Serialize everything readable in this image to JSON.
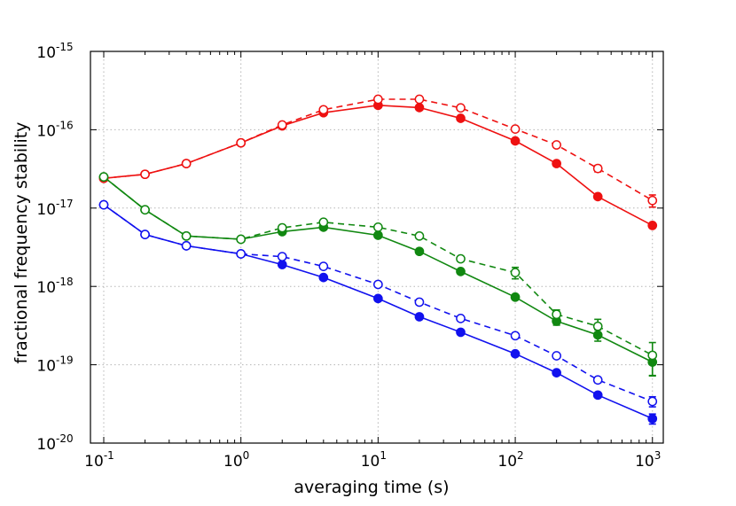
{
  "chart_data": {
    "type": "line",
    "title": "",
    "xlabel": "averaging time (s)",
    "ylabel": "fractional frequency stability",
    "xscale": "log",
    "yscale": "log",
    "xlim": [
      0.08,
      1200
    ],
    "ylim": [
      1e-20,
      1e-15
    ],
    "grid": true,
    "x_ticks": [
      {
        "value": 0.1,
        "base": "10",
        "exp": "-1"
      },
      {
        "value": 1,
        "base": "10",
        "exp": "0"
      },
      {
        "value": 10,
        "base": "10",
        "exp": "1"
      },
      {
        "value": 100,
        "base": "10",
        "exp": "2"
      },
      {
        "value": 1000,
        "base": "10",
        "exp": "3"
      }
    ],
    "y_ticks": [
      {
        "value": 1e-20,
        "base": "10",
        "exp": "-20"
      },
      {
        "value": 1e-19,
        "base": "10",
        "exp": "-19"
      },
      {
        "value": 1e-18,
        "base": "10",
        "exp": "-18"
      },
      {
        "value": 1e-17,
        "base": "10",
        "exp": "-17"
      },
      {
        "value": 1e-16,
        "base": "10",
        "exp": "-16"
      },
      {
        "value": 1e-15,
        "base": "10",
        "exp": "-15"
      }
    ],
    "x": [
      0.1,
      0.2,
      0.4,
      1,
      2,
      4,
      10,
      20,
      40,
      100,
      200,
      400,
      1000
    ],
    "series": [
      {
        "name": "red-solid",
        "color": "#ee1111",
        "style": "solid",
        "marker": "filled",
        "x": [
          0.1,
          0.2,
          0.4,
          1,
          2,
          4,
          10,
          20,
          40,
          100,
          200,
          400,
          1000
        ],
        "values": [
          2.4e-17,
          2.7e-17,
          3.7e-17,
          6.8e-17,
          1.12e-16,
          1.65e-16,
          2.05e-16,
          1.92e-16,
          1.4e-16,
          7.2e-17,
          3.7e-17,
          1.4e-17,
          6e-18
        ],
        "errors": []
      },
      {
        "name": "red-dashed",
        "color": "#ee1111",
        "style": "dashed",
        "marker": "open",
        "x": [
          0.1,
          0.2,
          0.4,
          1,
          2,
          4,
          10,
          20,
          40,
          100,
          200,
          400,
          1000
        ],
        "values": [
          2.4e-17,
          2.7e-17,
          3.7e-17,
          6.8e-17,
          1.15e-16,
          1.8e-16,
          2.45e-16,
          2.45e-16,
          1.9e-16,
          1.02e-16,
          6.4e-17,
          3.2e-17,
          1.25e-17
        ],
        "errors": [
          0,
          0,
          0,
          0,
          0,
          0,
          0,
          0,
          0,
          0,
          0,
          3e-18,
          2.2e-18
        ]
      },
      {
        "name": "green-solid",
        "color": "#118811",
        "style": "solid",
        "marker": "filled",
        "x": [
          0.1,
          0.2,
          0.4,
          1,
          2,
          4,
          10,
          20,
          40,
          100,
          200,
          400,
          1000
        ],
        "values": [
          2.5e-17,
          9.5e-18,
          4.4e-18,
          4e-18,
          5e-18,
          5.7e-18,
          4.5e-18,
          2.8e-18,
          1.55e-18,
          7.3e-19,
          3.6e-19,
          2.4e-19,
          1.08e-19
        ],
        "errors": [
          0,
          0,
          0,
          0,
          0,
          0,
          0,
          0,
          0,
          0,
          4e-20,
          4e-20,
          3.5e-20
        ]
      },
      {
        "name": "green-dashed",
        "color": "#118811",
        "style": "dashed",
        "marker": "open",
        "x": [
          0.1,
          0.2,
          0.4,
          1,
          2,
          4,
          10,
          20,
          40,
          100,
          200,
          400,
          1000
        ],
        "values": [
          2.5e-17,
          9.5e-18,
          4.4e-18,
          4e-18,
          5.6e-18,
          6.6e-18,
          5.7e-18,
          4.4e-18,
          2.25e-18,
          1.5e-18,
          4.4e-19,
          3.1e-19,
          1.32e-19
        ],
        "errors": [
          0,
          0,
          0,
          0,
          0,
          0,
          0,
          0,
          0,
          2.5e-19,
          6e-20,
          7e-20,
          6e-20
        ]
      },
      {
        "name": "blue-solid",
        "color": "#1111ee",
        "style": "solid",
        "marker": "filled",
        "x": [
          0.1,
          0.2,
          0.4,
          1,
          2,
          4,
          10,
          20,
          40,
          100,
          200,
          400,
          1000
        ],
        "values": [
          1.1e-17,
          4.6e-18,
          3.3e-18,
          2.6e-18,
          1.9e-18,
          1.3e-18,
          7e-19,
          4.1e-19,
          2.6e-19,
          1.38e-19,
          7.9e-20,
          4.1e-20,
          2.05e-20
        ],
        "errors": [
          0,
          0,
          0,
          0,
          0,
          0,
          0,
          0,
          0,
          0,
          0,
          0,
          3e-21
        ]
      },
      {
        "name": "blue-dashed",
        "color": "#1111ee",
        "style": "dashed",
        "marker": "open",
        "x": [
          0.1,
          0.2,
          0.4,
          1,
          2,
          4,
          10,
          20,
          40,
          100,
          200,
          400,
          1000
        ],
        "values": [
          1.1e-17,
          4.6e-18,
          3.3e-18,
          2.6e-18,
          2.4e-18,
          1.8e-18,
          1.06e-18,
          6.3e-19,
          3.9e-19,
          2.35e-19,
          1.3e-19,
          6.4e-20,
          3.4e-20
        ],
        "errors": [
          0,
          0,
          0,
          0,
          0,
          0,
          0,
          0,
          0,
          0,
          0,
          5e-21,
          5e-21
        ]
      }
    ]
  }
}
